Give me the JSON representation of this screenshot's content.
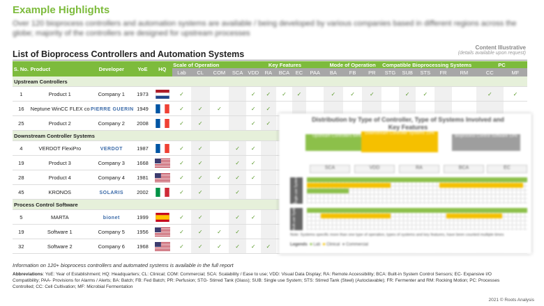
{
  "highlights": {
    "title": "Example Highlights",
    "text": "Over 120 bioprocess controllers and automation systems are available / being developed by various companies based in different regions across the globe; majority of the controllers are designed for upstream processes"
  },
  "illustrative": {
    "label": "Content Illustrative",
    "note": "(details available upon request)"
  },
  "list_title": "List of Bioprocess Controllers  and Automation Systems",
  "header": {
    "fixed": {
      "sno": "S. No.",
      "product": "Product",
      "developer": "Developer",
      "yoe": "YoE",
      "hq": "HQ"
    },
    "groups": {
      "scale": "Scale of Operation",
      "key": "Key Features",
      "mode": "Mode of Operation",
      "compat": "Compatible Bioprocessing  Systems",
      "pc": "PC"
    },
    "cols": [
      "Lab",
      "CL",
      "COM",
      "SCA",
      "VDD",
      "RA",
      "BCA",
      "EC",
      "PAA",
      "BA",
      "FB",
      "PR",
      "STG",
      "SUB",
      "STS",
      "FR",
      "RM",
      "CC",
      "MF"
    ]
  },
  "sections": [
    {
      "label": "Upstream Controllers",
      "rows": [
        {
          "sno": "1",
          "product": "Product 1",
          "developer": "Company 1",
          "yoe": "1973",
          "flag": "nl",
          "checks": [
            1,
            0,
            0,
            0,
            1,
            1,
            1,
            1,
            0,
            1,
            1,
            1,
            0,
            1,
            1,
            0,
            0,
            1,
            1
          ]
        },
        {
          "sno": "16",
          "product": "Neptune WinCC FLEX control",
          "developer": "",
          "logo": "PIERRE GUERIN",
          "yoe": "1949",
          "flag": "fr",
          "checks": [
            1,
            1,
            1,
            0,
            1,
            1,
            0,
            0,
            0,
            0,
            0,
            0,
            0,
            0,
            0,
            0,
            0,
            0,
            0
          ]
        },
        {
          "sno": "25",
          "product": "Product 2",
          "developer": "Company 2",
          "yoe": "2008",
          "flag": "fr",
          "checks": [
            1,
            1,
            0,
            0,
            1,
            1,
            1,
            0,
            0,
            0,
            0,
            0,
            0,
            0,
            0,
            0,
            0,
            0,
            0
          ]
        }
      ]
    },
    {
      "label": "Downstream Controller  Systems",
      "rows": [
        {
          "sno": "4",
          "product": "VERDOT FlexiPro",
          "developer": "",
          "logo": "VERDOT",
          "yoe": "1987",
          "flag": "fr",
          "checks": [
            1,
            1,
            0,
            1,
            1,
            0,
            1,
            0,
            0,
            0,
            0,
            0,
            0,
            0,
            0,
            0,
            0,
            0,
            0
          ]
        },
        {
          "sno": "19",
          "product": "Product 3",
          "developer": "Company 3",
          "yoe": "1668",
          "flag": "us",
          "checks": [
            1,
            1,
            0,
            1,
            1,
            0,
            1,
            0,
            0,
            0,
            0,
            0,
            0,
            0,
            0,
            0,
            0,
            0,
            0
          ]
        },
        {
          "sno": "28",
          "product": "Product 4",
          "developer": "Company 4",
          "yoe": "1981",
          "flag": "us",
          "checks": [
            1,
            1,
            1,
            1,
            1,
            0,
            1,
            0,
            0,
            0,
            0,
            0,
            0,
            0,
            0,
            0,
            0,
            0,
            0
          ]
        },
        {
          "sno": "45",
          "product": "KRONOS",
          "developer": "",
          "logo": "SOLARIS",
          "yoe": "2002",
          "flag": "it",
          "checks": [
            1,
            1,
            0,
            1,
            0,
            0,
            1,
            0,
            0,
            0,
            0,
            0,
            0,
            0,
            0,
            0,
            0,
            0,
            0
          ]
        }
      ]
    },
    {
      "label": "Process Control Software",
      "rows": [
        {
          "sno": "5",
          "product": "MARTA",
          "developer": "",
          "logo": "bionet",
          "yoe": "1999",
          "flag": "es",
          "checks": [
            1,
            1,
            0,
            1,
            1,
            0,
            1,
            0,
            0,
            0,
            0,
            0,
            0,
            0,
            0,
            0,
            0,
            0,
            0
          ]
        },
        {
          "sno": "19",
          "product": "Software 1",
          "developer": "Company 5",
          "yoe": "1956",
          "flag": "us",
          "checks": [
            1,
            1,
            1,
            1,
            0,
            0,
            1,
            0,
            0,
            0,
            0,
            0,
            0,
            0,
            0,
            0,
            0,
            0,
            0
          ]
        },
        {
          "sno": "32",
          "product": "Software 2",
          "developer": "Company 6",
          "yoe": "1968",
          "flag": "us",
          "checks": [
            1,
            1,
            1,
            1,
            1,
            1,
            1,
            0,
            0,
            0,
            0,
            0,
            0,
            0,
            0,
            0,
            0,
            0,
            0
          ]
        }
      ]
    }
  ],
  "overlay": {
    "title": "Distribution by Type of Controller, Type of Systems Involved and Key Features",
    "boxes": [
      "Upstream Controllers 64%",
      "Downstream Controller Systems 23%",
      "Bioprocess Control Software 13%"
    ],
    "categories": [
      "SCA",
      "VDD",
      "RA",
      "BCA",
      "EC"
    ],
    "side_labels": [
      "Single-use Systems",
      "Multi-use Systems"
    ],
    "note": "Note: Systems specific more than one type of operation, types of systems and key features, have been counted multiple times",
    "legend": [
      "Legends",
      "Lab",
      "Clinical",
      "Commercial"
    ]
  },
  "footnote": "Information on 120+ bioprocess controllers and automated systems is available in the full report",
  "abbreviations": {
    "label": "Abbreviations",
    "text": ": YoE: Year of Establishment; HQ: Headquarters; CL: Clinical; COM: Commercial; SCA: Scalability / Ease to use; VDD: Visual Data Display; RA: Remote  Accessibility; BCA: Built-in System Control Sensors; EC- Expansive I/O Compatibility; PAA- Provisions for Alarms / Alerts; BA: Batch; FB: Fed Batch; PR: Perfusion; STG- Stirred Tank (Glass); SUB: Single use System; STS: Stirred Tank (Steel) (Autoclavable); FR: Fermenter and RM: Rocking Motion; PC: Processes Controlled; CC: Cell Cultivation; MF: Microbial Fermentation"
  },
  "copyright": "2021 © Roots Analysis",
  "colors": {
    "accent": "#7dbb3c",
    "header_gray": "#a7a7a7",
    "section_bg": "#e6f0da",
    "check": "#5a9a2a"
  }
}
